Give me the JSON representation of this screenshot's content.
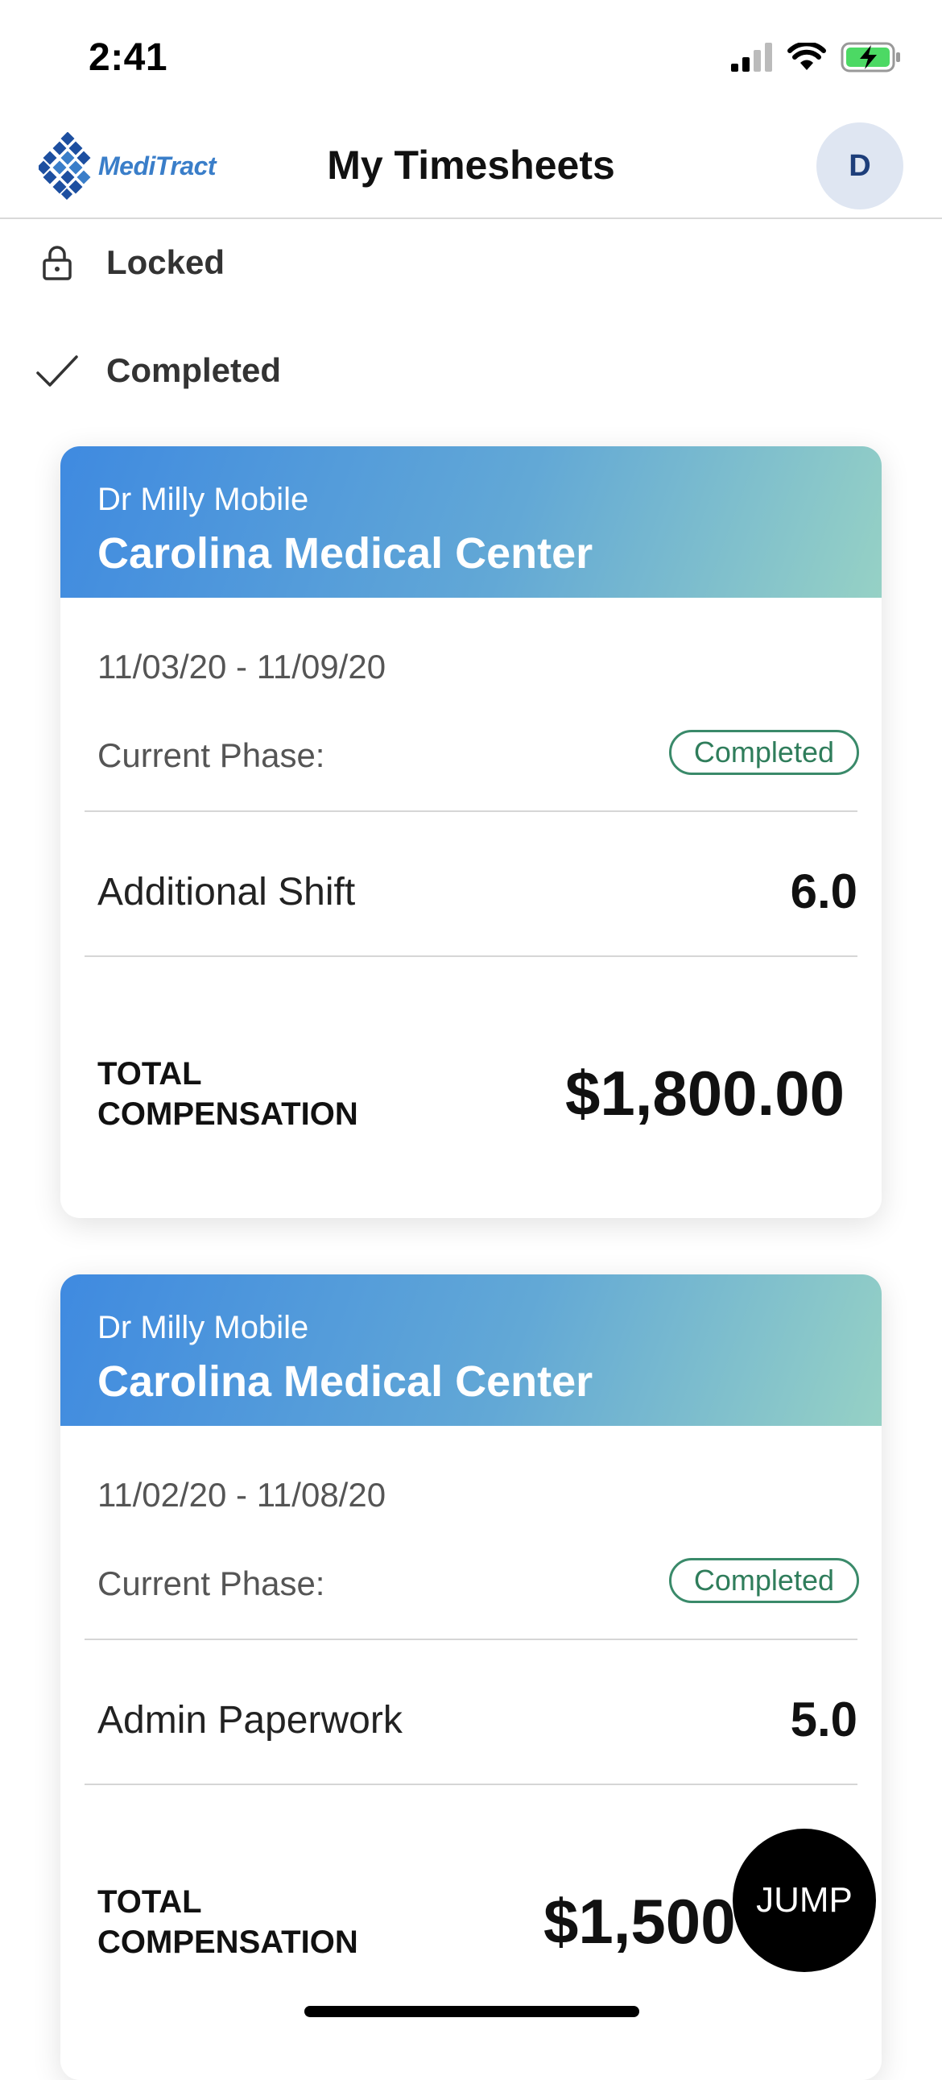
{
  "status_bar": {
    "time": "2:41"
  },
  "header": {
    "logo_text": "MediTract",
    "title": "My Timesheets",
    "avatar_initial": "D"
  },
  "filters": [
    {
      "label": "Locked",
      "icon": "lock-icon"
    },
    {
      "label": "Completed",
      "icon": "checkmark-icon"
    }
  ],
  "timesheets": [
    {
      "provider": "Dr Milly Mobile",
      "facility": "Carolina Medical Center",
      "date_range": "11/03/20 - 11/09/20",
      "phase_label": "Current Phase:",
      "phase": "Completed",
      "shift_type": "Additional Shift",
      "hours": "6.0",
      "total_label": "TOTAL COMPENSATION",
      "total_amount": "$1,800.00"
    },
    {
      "provider": "Dr Milly Mobile",
      "facility": "Carolina Medical Center",
      "date_range": "11/02/20 - 11/08/20",
      "phase_label": "Current Phase:",
      "phase": "Completed",
      "shift_type": "Admin Paperwork",
      "hours": "5.0",
      "total_label": "TOTAL COMPENSATION",
      "total_amount": "$1,500"
    }
  ],
  "jump_button": {
    "label": "JUMP"
  },
  "colors": {
    "brand_blue": "#3a7ec9",
    "header_gradient_start": "#3f8ae0",
    "header_gradient_end": "#96d1c5",
    "completed_green": "#2f7d5b"
  }
}
